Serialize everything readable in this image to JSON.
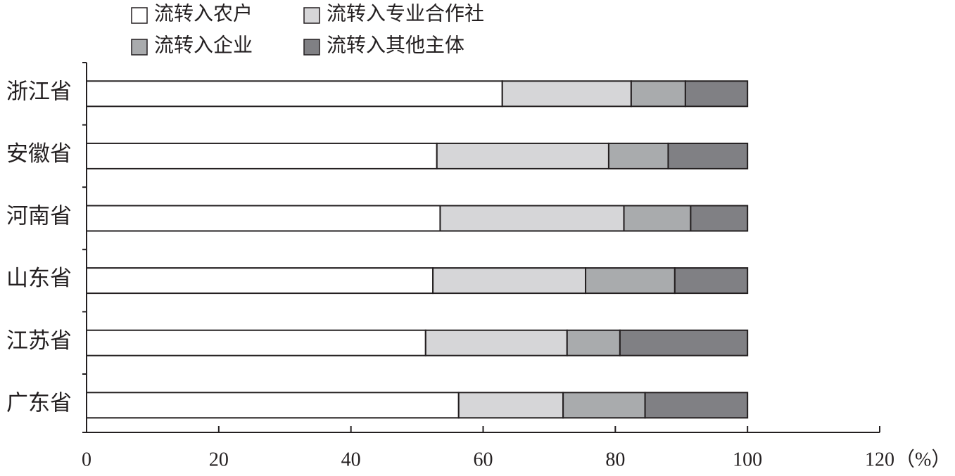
{
  "chart_data": {
    "type": "stacked-bar-horizontal",
    "categories": [
      "浙江省",
      "安徽省",
      "河南省",
      "山东省",
      "江苏省",
      "广东省"
    ],
    "series": [
      {
        "name": "流转入农户",
        "color": "#ffffff",
        "values": [
          62.9,
          53.0,
          53.5,
          52.4,
          51.3,
          56.3
        ]
      },
      {
        "name": "流转入专业合作社",
        "color": "#d6d6d8",
        "values": [
          19.5,
          26.0,
          27.8,
          23.1,
          21.4,
          15.8
        ]
      },
      {
        "name": "流转入企业",
        "color": "#a9abad",
        "values": [
          8.2,
          9.0,
          10.1,
          13.5,
          8.0,
          12.4
        ]
      },
      {
        "name": "流转入其他主体",
        "color": "#808084",
        "values": [
          9.4,
          12.0,
          8.6,
          11.0,
          19.3,
          15.5
        ]
      }
    ],
    "x_label": "（%）",
    "xlim": [
      0,
      120
    ],
    "xticks": [
      0,
      20,
      40,
      60,
      80,
      100,
      120
    ]
  }
}
